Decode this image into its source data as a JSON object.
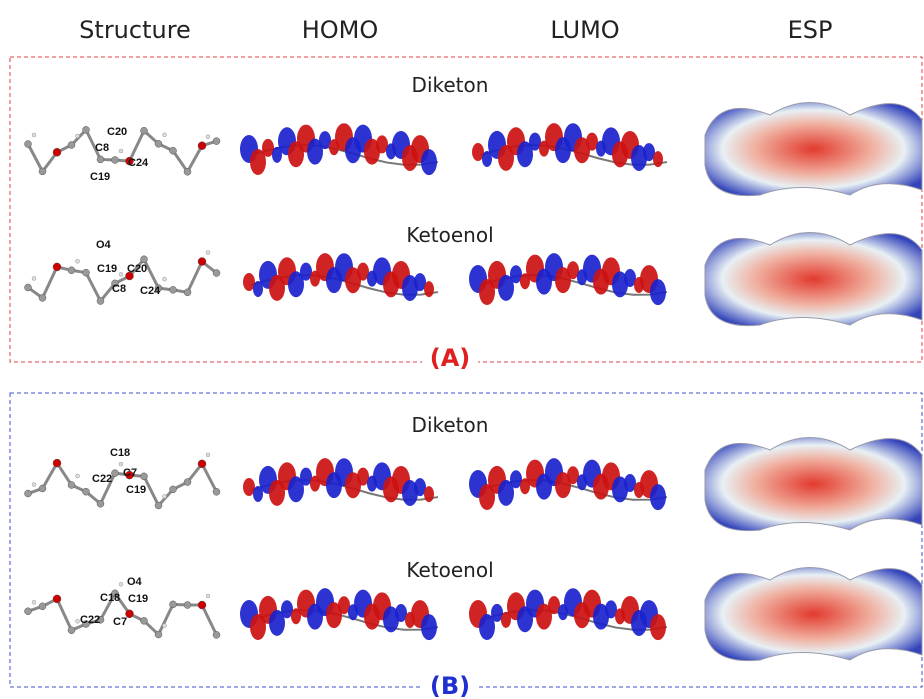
{
  "headers": [
    "Structure",
    "HOMO",
    "LUMO",
    "ESP"
  ],
  "panels": [
    {
      "label": "(A)",
      "rows": [
        {
          "title": "Diketon",
          "atoms": [
            "C20",
            "C8",
            "C24",
            "C19"
          ]
        },
        {
          "title": "Ketoenol",
          "atoms": [
            "O4",
            "C19",
            "C20",
            "C8",
            "C24"
          ]
        }
      ]
    },
    {
      "label": "(B)",
      "rows": [
        {
          "title": "Diketon",
          "atoms": [
            "C18",
            "C22",
            "C7",
            "C19"
          ]
        },
        {
          "title": "Ketoenol",
          "atoms": [
            "O4",
            "C18",
            "C19",
            "C22",
            "C7"
          ]
        }
      ]
    }
  ]
}
